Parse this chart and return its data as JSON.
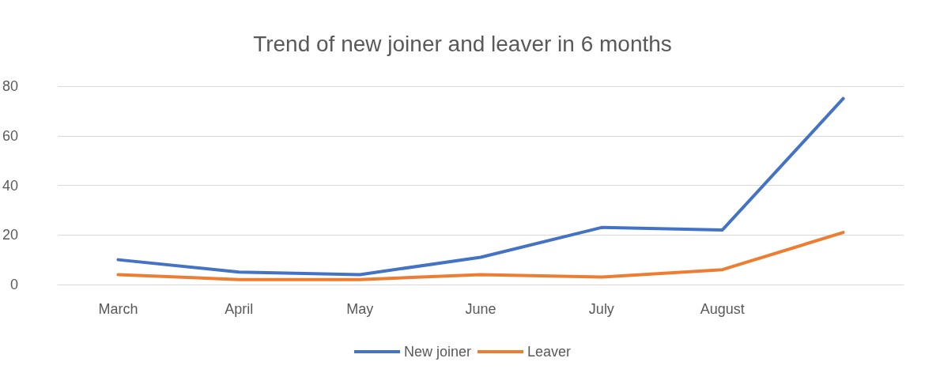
{
  "chart_data": {
    "type": "line",
    "title": "Trend of new joiner and leaver in 6 months",
    "categories": [
      "March",
      "April",
      "May",
      "June",
      "July",
      "August",
      null
    ],
    "series": [
      {
        "name": "New joiner",
        "color": "#4472c4",
        "values": [
          10,
          5,
          4,
          11,
          23,
          22,
          75
        ]
      },
      {
        "name": "Leaver",
        "color": "#ed7d31",
        "values": [
          4,
          2,
          2,
          4,
          3,
          6,
          21
        ]
      }
    ],
    "ylim": [
      0,
      80
    ],
    "yticks": [
      0,
      20,
      40,
      60,
      80
    ],
    "grid": "y",
    "legend": "bottom",
    "marker": "none",
    "line_style": "solid"
  }
}
